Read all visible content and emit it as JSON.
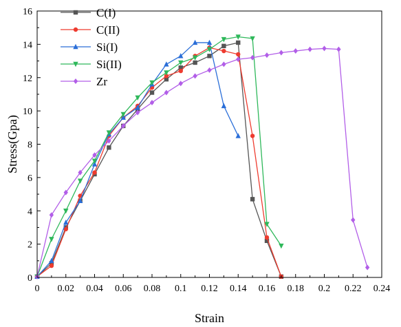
{
  "chart_data": {
    "type": "line",
    "xlabel": "Strain",
    "ylabel": "Stress(Gpa)",
    "xlim": [
      0,
      0.24
    ],
    "ylim": [
      0,
      16
    ],
    "x_ticks": [
      "0",
      "0.02",
      "0.04",
      "0.06",
      "0.08",
      "0.1",
      "0.12",
      "0.14",
      "0.16",
      "0.18",
      "0.2",
      "0.22",
      "0.24"
    ],
    "y_ticks": [
      "0",
      "2",
      "4",
      "6",
      "8",
      "10",
      "12",
      "14",
      "16"
    ],
    "grid": false,
    "legend_position": "top-left",
    "series": [
      {
        "name": "C(I)",
        "color": "#555555",
        "marker": "square",
        "points": [
          [
            0,
            0.05
          ],
          [
            0.01,
            0.85
          ],
          [
            0.02,
            3.0
          ],
          [
            0.03,
            4.6
          ],
          [
            0.04,
            6.2
          ],
          [
            0.05,
            7.8
          ],
          [
            0.06,
            9.1
          ],
          [
            0.07,
            10.1
          ],
          [
            0.08,
            11.1
          ],
          [
            0.09,
            11.9
          ],
          [
            0.1,
            12.6
          ],
          [
            0.11,
            12.9
          ],
          [
            0.12,
            13.3
          ],
          [
            0.13,
            13.9
          ],
          [
            0.14,
            14.1
          ],
          [
            0.15,
            4.7
          ],
          [
            0.16,
            2.2
          ],
          [
            0.17,
            0.05
          ]
        ]
      },
      {
        "name": "C(II)",
        "color": "#ee3b2f",
        "marker": "circle",
        "points": [
          [
            0,
            0.05
          ],
          [
            0.01,
            0.7
          ],
          [
            0.02,
            2.9
          ],
          [
            0.03,
            4.9
          ],
          [
            0.04,
            6.3
          ],
          [
            0.05,
            8.5
          ],
          [
            0.06,
            9.6
          ],
          [
            0.07,
            10.3
          ],
          [
            0.08,
            11.4
          ],
          [
            0.09,
            12.1
          ],
          [
            0.1,
            12.4
          ],
          [
            0.11,
            13.3
          ],
          [
            0.12,
            13.8
          ],
          [
            0.13,
            13.6
          ],
          [
            0.14,
            13.4
          ],
          [
            0.15,
            8.5
          ],
          [
            0.16,
            2.4
          ],
          [
            0.17,
            0.05
          ]
        ]
      },
      {
        "name": "Si(I)",
        "color": "#2a6ed8",
        "marker": "triangle-up",
        "points": [
          [
            0,
            0.05
          ],
          [
            0.01,
            1.0
          ],
          [
            0.02,
            3.3
          ],
          [
            0.03,
            4.6
          ],
          [
            0.04,
            6.8
          ],
          [
            0.05,
            8.6
          ],
          [
            0.06,
            9.6
          ],
          [
            0.07,
            10.2
          ],
          [
            0.08,
            11.6
          ],
          [
            0.09,
            12.8
          ],
          [
            0.1,
            13.3
          ],
          [
            0.11,
            14.1
          ],
          [
            0.12,
            14.1
          ],
          [
            0.13,
            10.3
          ],
          [
            0.14,
            8.5
          ]
        ]
      },
      {
        "name": "Si(II)",
        "color": "#2eb85a",
        "marker": "triangle-down",
        "points": [
          [
            0,
            0.05
          ],
          [
            0.01,
            2.3
          ],
          [
            0.02,
            4.0
          ],
          [
            0.03,
            5.8
          ],
          [
            0.04,
            7.0
          ],
          [
            0.05,
            8.7
          ],
          [
            0.06,
            9.8
          ],
          [
            0.07,
            10.8
          ],
          [
            0.08,
            11.7
          ],
          [
            0.09,
            12.3
          ],
          [
            0.1,
            12.9
          ],
          [
            0.11,
            13.2
          ],
          [
            0.12,
            13.7
          ],
          [
            0.13,
            14.3
          ],
          [
            0.14,
            14.45
          ],
          [
            0.15,
            14.35
          ],
          [
            0.16,
            3.2
          ],
          [
            0.17,
            1.9
          ]
        ]
      },
      {
        "name": "Zr",
        "color": "#b25ee8",
        "marker": "diamond",
        "points": [
          [
            0,
            0.05
          ],
          [
            0.01,
            3.75
          ],
          [
            0.02,
            5.1
          ],
          [
            0.03,
            6.3
          ],
          [
            0.04,
            7.35
          ],
          [
            0.05,
            8.2
          ],
          [
            0.06,
            9.1
          ],
          [
            0.07,
            9.9
          ],
          [
            0.08,
            10.5
          ],
          [
            0.09,
            11.1
          ],
          [
            0.1,
            11.65
          ],
          [
            0.11,
            12.1
          ],
          [
            0.12,
            12.45
          ],
          [
            0.13,
            12.8
          ],
          [
            0.14,
            13.1
          ],
          [
            0.15,
            13.2
          ],
          [
            0.16,
            13.35
          ],
          [
            0.17,
            13.5
          ],
          [
            0.18,
            13.6
          ],
          [
            0.19,
            13.7
          ],
          [
            0.2,
            13.75
          ],
          [
            0.21,
            13.7
          ],
          [
            0.22,
            3.45
          ],
          [
            0.23,
            0.6
          ]
        ]
      }
    ]
  }
}
